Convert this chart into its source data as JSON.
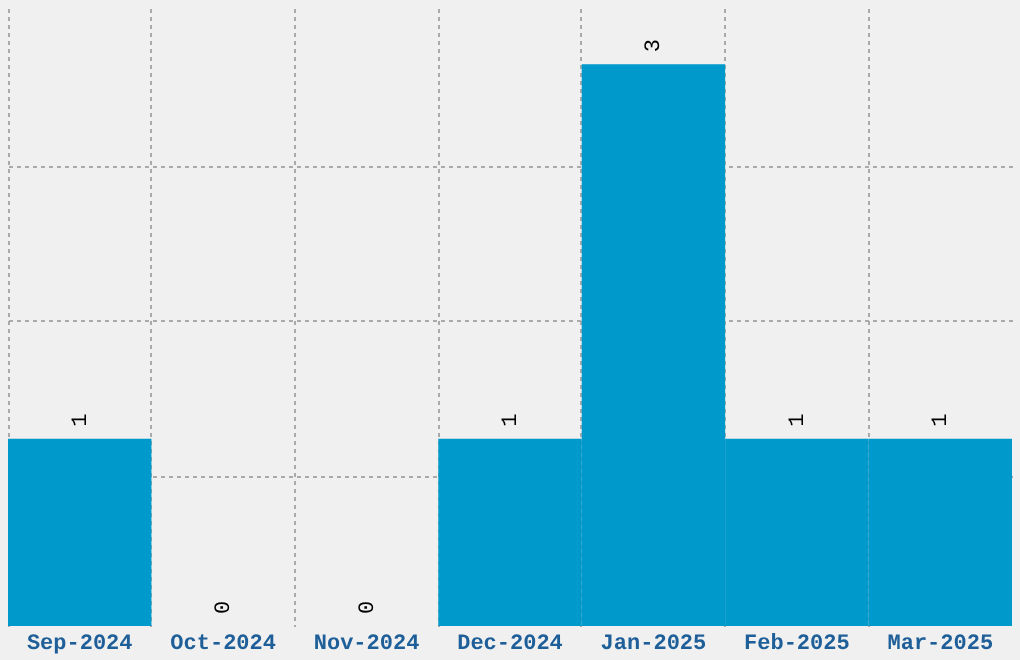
{
  "chart_data": {
    "type": "bar",
    "categories": [
      "Sep-2024",
      "Oct-2024",
      "Nov-2024",
      "Dec-2024",
      "Jan-2025",
      "Feb-2025",
      "Mar-2025"
    ],
    "values": [
      1,
      0,
      0,
      1,
      3,
      1,
      1
    ],
    "color": "#0099cc",
    "ylim": [
      0,
      3.3
    ],
    "yticks": [
      {
        "value": 0.8,
        "label": null
      },
      {
        "value": 1.63,
        "label": null
      },
      {
        "value": 2.46,
        "label": null
      }
    ],
    "grid": true,
    "data_labels": true,
    "tick_labels": "x"
  }
}
